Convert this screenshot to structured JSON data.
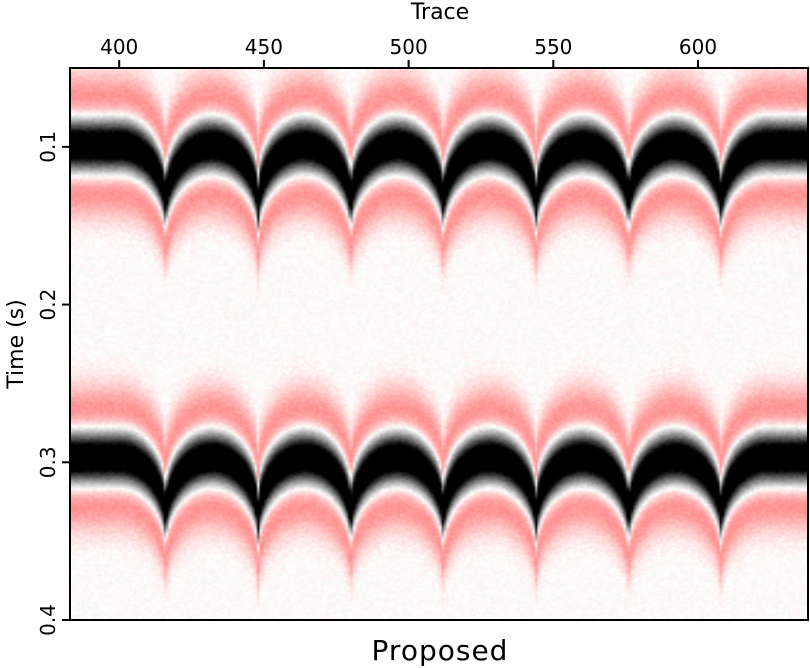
{
  "chart_data": {
    "type": "heatmap",
    "title": "",
    "xlabel": "Trace",
    "ylabel": "Time (s)",
    "caption": "Proposed",
    "x_axis_position": "top",
    "x_ticks": [
      400,
      450,
      500,
      550,
      600
    ],
    "x_tick_labels": [
      "400",
      "450",
      "500",
      "550",
      "600"
    ],
    "xlim": [
      383,
      638
    ],
    "y_ticks": [
      0.1,
      0.2,
      0.3,
      0.4
    ],
    "y_tick_labels": [
      "0.1",
      "0.2",
      "0.3",
      "0.4"
    ],
    "ylim": [
      0.05,
      0.4
    ],
    "y_inverted": true,
    "grid": false,
    "legend": "none",
    "colormap": {
      "negative": "#ff5a5a",
      "zero": "#ffffff",
      "positive": "#000000"
    },
    "events": [
      {
        "apex_time_s": 0.099,
        "trough_time_s": 0.138
      },
      {
        "apex_time_s": 0.297,
        "trough_time_s": 0.336
      }
    ],
    "cusp_traces": [
      416,
      448,
      480,
      512,
      544,
      576,
      608
    ],
    "event_width_s": 0.028,
    "wavelet": "ricker-like, black positive lobe with red negative side lobes"
  }
}
